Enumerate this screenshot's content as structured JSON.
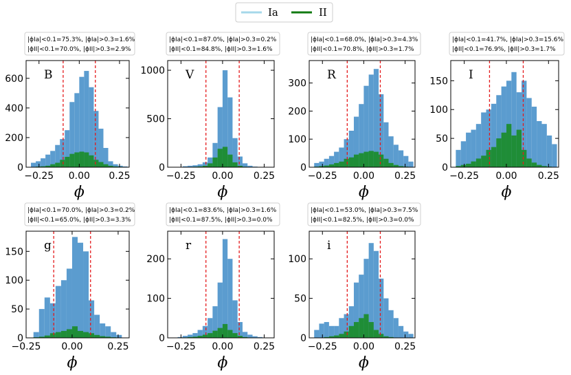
{
  "chart_data": {
    "type": "bar",
    "legend": {
      "placement": "top-center",
      "entries": [
        {
          "name": "Ia",
          "color": "#a6d8ea"
        },
        {
          "name": "II",
          "color": "#117a11"
        }
      ]
    },
    "colors": {
      "Ia": "#5b9ccf",
      "II": "#1a8c2a",
      "threshold": "#e41a1c"
    },
    "thresholds": [
      -0.1,
      0.1
    ],
    "bin_width": 0.03,
    "panels": [
      {
        "band": "B",
        "title": [
          "|ϕIa|<0.1=75.3%, |ϕIa|>0.3=1.6%",
          "|ϕII|<0.1=70.0%, |ϕII|>0.3=2.9%"
        ],
        "xlabel": "ϕ",
        "xlim": [
          -0.33,
          0.31
        ],
        "ylim": [
          0,
          720
        ],
        "xticks": [
          -0.25,
          0.0,
          0.25
        ],
        "xticklabels": [
          "−0.25",
          "0.00",
          "0.25"
        ],
        "yticks": [
          0,
          200,
          400,
          600
        ],
        "yticklabels": [
          "0",
          "200",
          "400",
          "600"
        ],
        "bins": [
          -0.3,
          -0.27,
          -0.24,
          -0.21,
          -0.18,
          -0.15,
          -0.12,
          -0.09,
          -0.06,
          -0.03,
          0.0,
          0.03,
          0.06,
          0.09,
          0.12,
          0.15,
          0.18,
          0.21,
          0.24,
          0.27
        ],
        "Ia": [
          30,
          40,
          60,
          85,
          110,
          150,
          190,
          250,
          440,
          500,
          610,
          650,
          540,
          380,
          260,
          130,
          40,
          20,
          10,
          5
        ],
        "II": [
          2,
          4,
          6,
          10,
          20,
          30,
          50,
          70,
          90,
          100,
          105,
          100,
          80,
          50,
          35,
          20,
          10,
          5,
          3,
          1
        ]
      },
      {
        "band": "V",
        "title": [
          "|ϕIa|<0.1=87.0%, |ϕIa|>0.3=0.2%",
          "|ϕII|<0.1=84.8%, |ϕII|>0.3=1.6%"
        ],
        "xlabel": "ϕ",
        "xlim": [
          -0.33,
          0.31
        ],
        "ylim": [
          0,
          1100
        ],
        "xticks": [
          -0.25,
          0.0,
          0.25
        ],
        "xticklabels": [
          "−0.25",
          "0.00",
          "0.25"
        ],
        "yticks": [
          0,
          500,
          1000
        ],
        "yticklabels": [
          "0",
          "500",
          "1000"
        ],
        "bins": [
          -0.3,
          -0.27,
          -0.24,
          -0.21,
          -0.18,
          -0.15,
          -0.12,
          -0.09,
          -0.06,
          -0.03,
          0.0,
          0.03,
          0.06,
          0.09,
          0.12,
          0.15,
          0.18,
          0.21,
          0.24,
          0.27
        ],
        "Ia": [
          0,
          3,
          10,
          15,
          20,
          30,
          50,
          100,
          250,
          620,
          1000,
          720,
          300,
          110,
          40,
          15,
          6,
          2,
          0,
          0
        ],
        "II": [
          0,
          0,
          2,
          3,
          5,
          8,
          15,
          40,
          100,
          190,
          210,
          130,
          50,
          15,
          5,
          2,
          0,
          0,
          0,
          0
        ]
      },
      {
        "band": "R",
        "title": [
          "|ϕIa|<0.1=68.0%, |ϕIa|>0.3=4.3%",
          "|ϕII|<0.1=70.8%, |ϕII|>0.3=1.7%"
        ],
        "xlabel": "ϕ",
        "xlim": [
          -0.33,
          0.31
        ],
        "ylim": [
          0,
          380
        ],
        "xticks": [
          -0.25,
          0.0,
          0.25
        ],
        "xticklabels": [
          "−0.25",
          "0.00",
          "0.25"
        ],
        "yticks": [
          0,
          100,
          200,
          300
        ],
        "yticklabels": [
          "0",
          "100",
          "200",
          "300"
        ],
        "bins": [
          -0.3,
          -0.27,
          -0.24,
          -0.21,
          -0.18,
          -0.15,
          -0.12,
          -0.09,
          -0.06,
          -0.03,
          0.0,
          0.03,
          0.06,
          0.09,
          0.12,
          0.15,
          0.18,
          0.21,
          0.24,
          0.27
        ],
        "Ia": [
          15,
          20,
          30,
          40,
          55,
          70,
          100,
          130,
          180,
          225,
          290,
          330,
          350,
          260,
          160,
          110,
          80,
          60,
          40,
          20
        ],
        "II": [
          2,
          4,
          6,
          10,
          15,
          20,
          30,
          35,
          45,
          50,
          55,
          58,
          55,
          45,
          30,
          15,
          8,
          4,
          2,
          1
        ]
      },
      {
        "band": "I",
        "title": [
          "|ϕIa|<0.1=41.7%, |ϕIa|>0.3=15.6%",
          "|ϕII|<0.1=76.9%, |ϕII|>0.3=1.7%"
        ],
        "xlabel": "ϕ",
        "xlim": [
          -0.33,
          0.31
        ],
        "ylim": [
          0,
          185
        ],
        "xticks": [
          -0.25,
          0.0,
          0.25
        ],
        "xticklabels": [
          "−0.25",
          "0.00",
          "0.25"
        ],
        "yticks": [
          0,
          50,
          100,
          150
        ],
        "yticklabels": [
          "0",
          "50",
          "100",
          "150"
        ],
        "bins": [
          -0.3,
          -0.27,
          -0.24,
          -0.21,
          -0.18,
          -0.15,
          -0.12,
          -0.09,
          -0.06,
          -0.03,
          0.0,
          0.03,
          0.06,
          0.09,
          0.12,
          0.15,
          0.18,
          0.21,
          0.24,
          0.27
        ],
        "Ia": [
          30,
          45,
          60,
          65,
          75,
          95,
          100,
          110,
          125,
          140,
          150,
          165,
          130,
          150,
          120,
          105,
          80,
          75,
          55,
          40
        ],
        "II": [
          2,
          4,
          6,
          10,
          15,
          20,
          30,
          35,
          50,
          60,
          75,
          55,
          65,
          30,
          15,
          8,
          4,
          2,
          1,
          0
        ]
      },
      {
        "band": "g",
        "title": [
          "|ϕIa|<0.1=70.0%, |ϕIa|>0.3=0.2%",
          "|ϕII|<0.1=65.0%, |ϕII|>0.3=3.3%"
        ],
        "xlabel": "ϕ",
        "xlim": [
          -0.25,
          0.31
        ],
        "ylim": [
          0,
          185
        ],
        "xticks": [
          -0.25,
          0.0,
          0.25
        ],
        "xticklabels": [
          "−0.25",
          "0.00",
          "0.25"
        ],
        "yticks": [
          0,
          50,
          100,
          150
        ],
        "yticklabels": [
          "0",
          "50",
          "100",
          "150"
        ],
        "bins": [
          -0.21,
          -0.18,
          -0.15,
          -0.12,
          -0.09,
          -0.06,
          -0.03,
          0.0,
          0.03,
          0.06,
          0.09,
          0.12,
          0.15,
          0.18,
          0.21,
          0.24
        ],
        "Ia": [
          10,
          50,
          70,
          60,
          90,
          100,
          120,
          175,
          165,
          150,
          65,
          40,
          25,
          20,
          10,
          5
        ],
        "II": [
          1,
          2,
          4,
          8,
          10,
          12,
          15,
          20,
          12,
          10,
          8,
          5,
          3,
          2,
          1,
          0
        ]
      },
      {
        "band": "r",
        "title": [
          "|ϕIa|<0.1=83.6%, |ϕIa|>0.3=1.6%",
          "|ϕII|<0.1=87.5%, |ϕII|>0.3=0.0%"
        ],
        "xlabel": "ϕ",
        "xlim": [
          -0.33,
          0.31
        ],
        "ylim": [
          0,
          270
        ],
        "xticks": [
          -0.25,
          0.0,
          0.25
        ],
        "xticklabels": [
          "−0.25",
          "0.00",
          "0.25"
        ],
        "yticks": [
          0,
          100,
          200
        ],
        "yticklabels": [
          "0",
          "100",
          "200"
        ],
        "bins": [
          -0.3,
          -0.27,
          -0.24,
          -0.21,
          -0.18,
          -0.15,
          -0.12,
          -0.09,
          -0.06,
          -0.03,
          0.0,
          0.03,
          0.06,
          0.09,
          0.12,
          0.15,
          0.18,
          0.21,
          0.24,
          0.27
        ],
        "Ia": [
          0,
          2,
          5,
          8,
          12,
          20,
          30,
          50,
          80,
          140,
          250,
          200,
          95,
          40,
          15,
          8,
          4,
          2,
          0,
          0
        ],
        "II": [
          0,
          0,
          1,
          2,
          3,
          5,
          8,
          12,
          18,
          25,
          35,
          20,
          12,
          5,
          2,
          1,
          0,
          0,
          0,
          0
        ]
      },
      {
        "band": "i",
        "title": [
          "|ϕIa|<0.1=53.0%, |ϕIa|>0.3=7.5%",
          "|ϕII|<0.1=82.5%, |ϕII|>0.3=0.0%"
        ],
        "xlabel": "ϕ",
        "xlim": [
          -0.33,
          0.31
        ],
        "ylim": [
          0,
          135
        ],
        "xticks": [
          -0.25,
          0.0,
          0.25
        ],
        "xticklabels": [
          "−0.25",
          "0.00",
          "0.25"
        ],
        "yticks": [
          0,
          50,
          100
        ],
        "yticklabels": [
          "0",
          "50",
          "100"
        ],
        "bins": [
          -0.3,
          -0.27,
          -0.24,
          -0.21,
          -0.18,
          -0.15,
          -0.12,
          -0.09,
          -0.06,
          -0.03,
          0.0,
          0.03,
          0.06,
          0.09,
          0.12,
          0.15,
          0.18,
          0.21,
          0.24,
          0.27
        ],
        "Ia": [
          10,
          18,
          20,
          15,
          15,
          25,
          30,
          40,
          70,
          80,
          100,
          120,
          110,
          75,
          50,
          35,
          25,
          15,
          8,
          5
        ],
        "II": [
          0,
          0,
          1,
          2,
          3,
          5,
          8,
          15,
          20,
          25,
          30,
          20,
          10,
          5,
          2,
          1,
          0,
          0,
          0,
          0
        ]
      }
    ]
  }
}
